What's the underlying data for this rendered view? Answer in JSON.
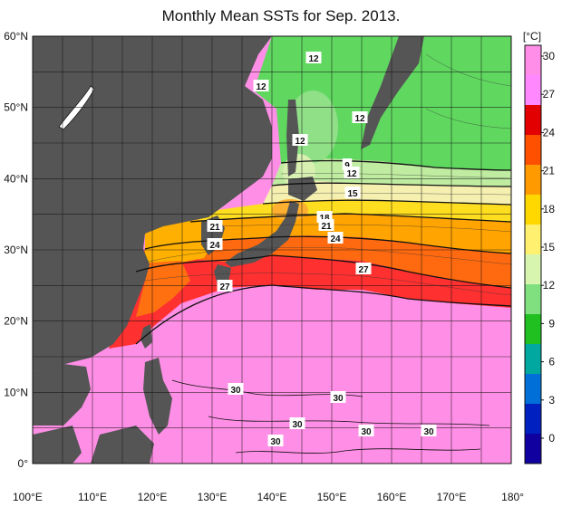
{
  "title": "Monthly Mean SSTs for Sep. 2013.",
  "colorbar": {
    "unit": "[°C]",
    "ticks": [
      "30",
      "27",
      "24",
      "21",
      "18",
      "15",
      "12",
      "9",
      "6",
      "3",
      "0"
    ],
    "colors": [
      "#ff8ee8",
      "#ff88ff",
      "#e30000",
      "#ff5000",
      "#ff9a00",
      "#ffd800",
      "#fff070",
      "#d8f5b0",
      "#80e080",
      "#20c020",
      "#00a8a0",
      "#0070d8",
      "#0020c0",
      "#1000a0"
    ]
  },
  "map": {
    "lat_labels": [
      "60°N",
      "50°N",
      "40°N",
      "30°N",
      "20°N",
      "10°N",
      "0°"
    ],
    "lon_labels": [
      "100°E",
      "110°E",
      "120°E",
      "130°E",
      "140°E",
      "150°E",
      "160°E",
      "170°E",
      "180°"
    ],
    "land_color": "#555555",
    "isotherm_labels": [
      "12",
      "12",
      "12",
      "12",
      "9",
      "12",
      "15",
      "18",
      "21",
      "21",
      "24",
      "24",
      "27",
      "27",
      "30",
      "30",
      "30",
      "30",
      "30",
      "30"
    ]
  }
}
